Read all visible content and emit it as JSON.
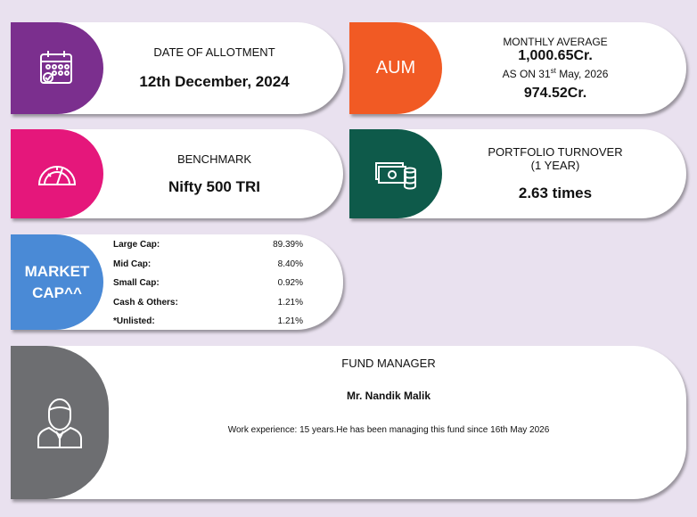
{
  "allotment": {
    "label": "DATE OF ALLOTMENT",
    "value": "12th December, 2024"
  },
  "aum": {
    "tab": "AUM",
    "label": "MONTHLY AVERAGE",
    "monthly_average": "1,000.65Cr.",
    "as_on_prefix": "AS ON 31",
    "as_on_sup": "st",
    "as_on_suffix": " May, 2026",
    "value": "974.52Cr."
  },
  "benchmark": {
    "label": "BENCHMARK",
    "value": "Nifty 500 TRI"
  },
  "turnover": {
    "label": "PORTFOLIO TURNOVER",
    "period": "(1 YEAR)",
    "value": "2.63 times"
  },
  "market_cap": {
    "tab": "MARKET CAP^^",
    "rows": [
      [
        "Large Cap:",
        "89.39%"
      ],
      [
        "Mid Cap:",
        "8.40%"
      ],
      [
        "Small Cap:",
        "0.92%"
      ],
      [
        "Cash & Others:",
        "1.21%"
      ],
      [
        "*Unlisted:",
        "1.21%"
      ]
    ]
  },
  "fund_manager": {
    "label": "FUND MANAGER",
    "name": "Mr. Nandik Malik",
    "experience": "Work experience: 15 years.He has been managing this fund since  16th May 2026"
  }
}
